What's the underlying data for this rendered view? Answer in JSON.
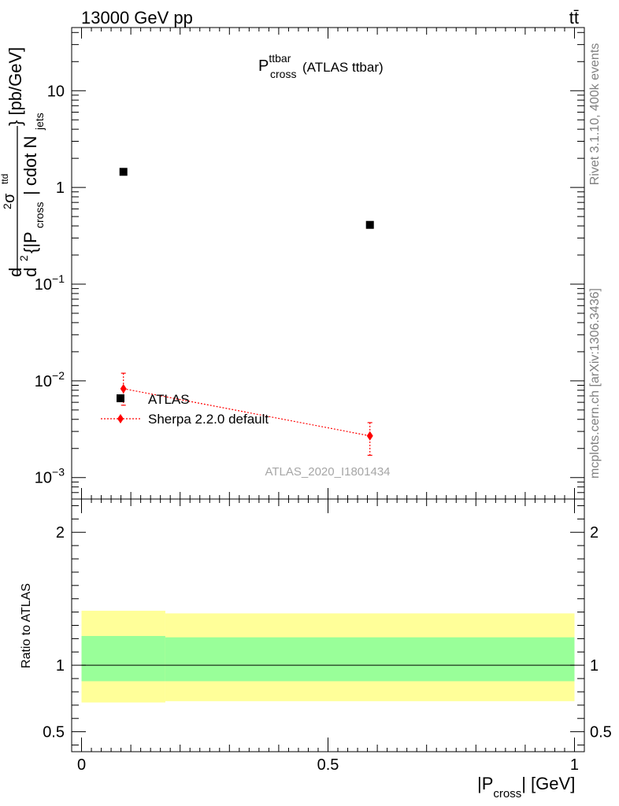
{
  "header": {
    "left": "13000 GeV pp",
    "right": "tt̄"
  },
  "side_labels": {
    "rivet": "Rivet 3.1.10,  400k events",
    "mcplots": "mcplots.cern.ch [arXiv:1306.3436]"
  },
  "chart_data": [
    {
      "type": "scatter",
      "title": {
        "main": "P",
        "superscript": "ttbar",
        "subscript": "cross",
        "suffix": "(ATLAS ttbar)"
      },
      "ylabel": {
        "d": "d",
        "d2": "2",
        "sigma": "σ",
        "sigma_sup": "ttd",
        "denom_d": "d",
        "denom_2": "2",
        "denom_brace": "{|P",
        "denom_sub": "cross",
        "denom_mid": "| cdot N",
        "denom_jets": "jets",
        "unit": "} [pb/GeV]"
      },
      "y_scale": "log",
      "ylim": [
        0.0006,
        45
      ],
      "yticks": [
        {
          "value": 10,
          "base": "10",
          "exp": ""
        },
        {
          "value": 1,
          "base": "1",
          "exp": ""
        },
        {
          "value": 0.1,
          "base": "10",
          "exp": "−1"
        },
        {
          "value": 0.01,
          "base": "10",
          "exp": "−2"
        },
        {
          "value": 0.001,
          "base": "10",
          "exp": "−3"
        }
      ],
      "xlim": [
        -0.02,
        1.02
      ],
      "watermark": "ATLAS_2020_I1801434",
      "legend_position": "lower-left",
      "series": [
        {
          "name": "ATLAS",
          "color": "#000000",
          "marker": "square",
          "points": [
            {
              "x": 0.085,
              "y": 1.45
            },
            {
              "x": 0.585,
              "y": 0.41
            }
          ]
        },
        {
          "name": "Sherpa 2.2.0 default",
          "color": "#ff0000",
          "marker": "diamond",
          "line": "dotted",
          "points": [
            {
              "x": 0.085,
              "y": 0.0083,
              "ylow": 0.0056,
              "yhigh": 0.012
            },
            {
              "x": 0.585,
              "y": 0.0027,
              "ylow": 0.0017,
              "yhigh": 0.0037
            }
          ]
        }
      ]
    },
    {
      "type": "area",
      "ylabel": "Ratio to ATLAS",
      "xlabel": {
        "pre": "|P",
        "sub": "cross",
        "post": "| [GeV]"
      },
      "xlim": [
        -0.02,
        1.02
      ],
      "ylim": [
        0.35,
        2.25
      ],
      "xticks": [
        {
          "value": 0,
          "label": "0"
        },
        {
          "value": 0.5,
          "label": "0.5"
        },
        {
          "value": 1,
          "label": "1"
        }
      ],
      "yticks": [
        {
          "value": 0.5,
          "label": "0.5"
        },
        {
          "value": 1,
          "label": "1"
        },
        {
          "value": 2,
          "label": "2"
        }
      ],
      "bands": [
        {
          "x0": 0,
          "x1": 0.17,
          "inner": [
            0.88,
            1.22
          ],
          "outer": [
            0.72,
            1.41
          ]
        },
        {
          "x0": 0.17,
          "x1": 1.0,
          "inner": [
            0.88,
            1.21
          ],
          "outer": [
            0.73,
            1.39
          ]
        }
      ],
      "band_colors": {
        "inner": "#99ff99",
        "outer": "#ffff99"
      },
      "reference_line": 1
    }
  ]
}
